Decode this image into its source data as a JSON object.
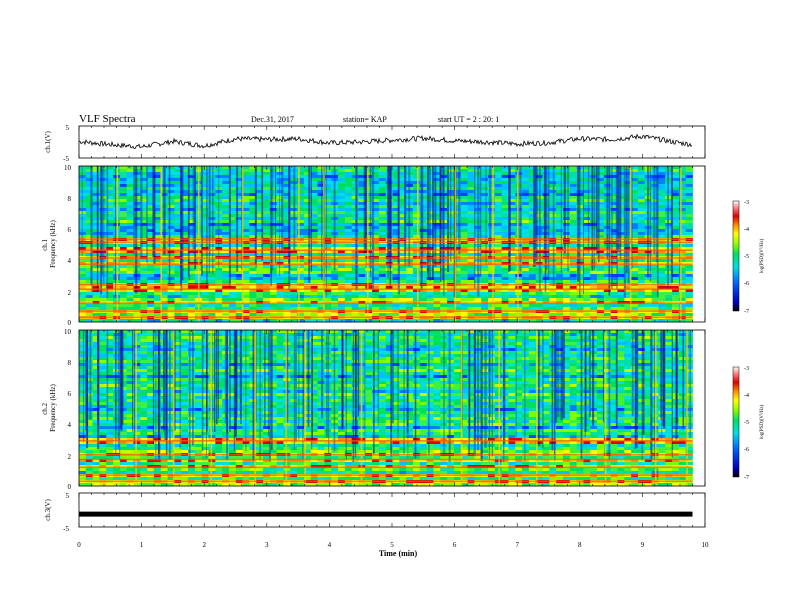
{
  "header": {
    "title": "VLF Spectra",
    "date": "Dec.31, 2017",
    "station": "station= KAP",
    "start": "start UT = 2 : 20: 1"
  },
  "colors": {
    "colormap": [
      "#ffffff",
      "#ff8080",
      "#e00000",
      "#ff8c00",
      "#ffff00",
      "#80ff00",
      "#00e060",
      "#00e0e0",
      "#0060ff",
      "#0000c0",
      "#000000"
    ],
    "trace": "#000000",
    "axes": "#000000"
  },
  "chart_data": [
    {
      "type": "line",
      "panel": "ch1-waveform",
      "ylabel": "ch.1(V)",
      "ylim": [
        -5,
        5
      ],
      "yticks": [
        "5",
        "-5"
      ],
      "x": [
        0,
        0.5,
        1,
        1.5,
        2,
        2.5,
        3,
        3.5,
        4,
        4.5,
        5,
        5.5,
        6,
        6.5,
        7,
        7.5,
        8,
        8.5,
        9,
        9.5,
        9.8
      ],
      "values": [
        0.2,
        -0.8,
        -1.5,
        0.2,
        -1.2,
        1.0,
        0.8,
        1.0,
        -0.3,
        0.0,
        0.6,
        1.2,
        0.4,
        0.0,
        -0.6,
        -0.2,
        1.0,
        0.8,
        1.8,
        0.0,
        -0.8
      ]
    },
    {
      "type": "heatmap",
      "panel": "ch1-spectrogram",
      "ylabel": "ch.1\nFrequency (kHz)",
      "ylim": [
        0,
        10
      ],
      "yticks": [
        "10",
        "8",
        "6",
        "4",
        "2",
        "0"
      ],
      "colorbar": {
        "label": "log(PSD)(V²/Hz)",
        "range": [
          -7,
          -3
        ],
        "ticks": [
          "-3",
          "-4",
          "-5",
          "-6",
          "-7"
        ]
      },
      "horizontal_bands_khz": [
        0.3,
        0.7,
        1.2,
        2.1,
        2.4,
        3.7,
        4.1,
        4.6,
        5.1,
        5.3
      ],
      "strong_vertical_lines_min": [
        0.6,
        1.3,
        1.9,
        2.6,
        3.5,
        3.9,
        4.6,
        5.4,
        6.0,
        6.6,
        7.0,
        8.8,
        9.6
      ]
    },
    {
      "type": "heatmap",
      "panel": "ch2-spectrogram",
      "ylabel": "ch.2\nFrequency (kHz)",
      "ylim": [
        0,
        10
      ],
      "yticks": [
        "10",
        "8",
        "6",
        "4",
        "2",
        "0"
      ],
      "colorbar": {
        "label": "log(PSD)(V²/Hz)",
        "range": [
          -7,
          -3
        ],
        "ticks": [
          "-3",
          "-4",
          "-5",
          "-6",
          "-7"
        ]
      },
      "horizontal_bands_khz": [
        0.3,
        0.7,
        1.2,
        1.7,
        2.0,
        2.9
      ],
      "strong_vertical_lines_min": [
        0.9,
        1.5,
        2.1,
        2.8,
        3.3,
        3.6,
        4.5,
        6.1,
        6.7,
        7.3,
        8.4,
        9.2,
        9.7
      ]
    },
    {
      "type": "line",
      "panel": "ch3-waveform",
      "ylabel": "ch.3(V)",
      "ylim": [
        -5,
        5
      ],
      "yticks": [
        "5",
        "-5"
      ],
      "x": [
        0,
        9.8
      ],
      "values": [
        -1.2,
        -1.2
      ]
    }
  ],
  "xaxis": {
    "label": "Time (min)",
    "range": [
      0,
      10
    ],
    "ticks": [
      "0",
      "1",
      "2",
      "3",
      "4",
      "5",
      "6",
      "7",
      "8",
      "9",
      "10"
    ]
  }
}
